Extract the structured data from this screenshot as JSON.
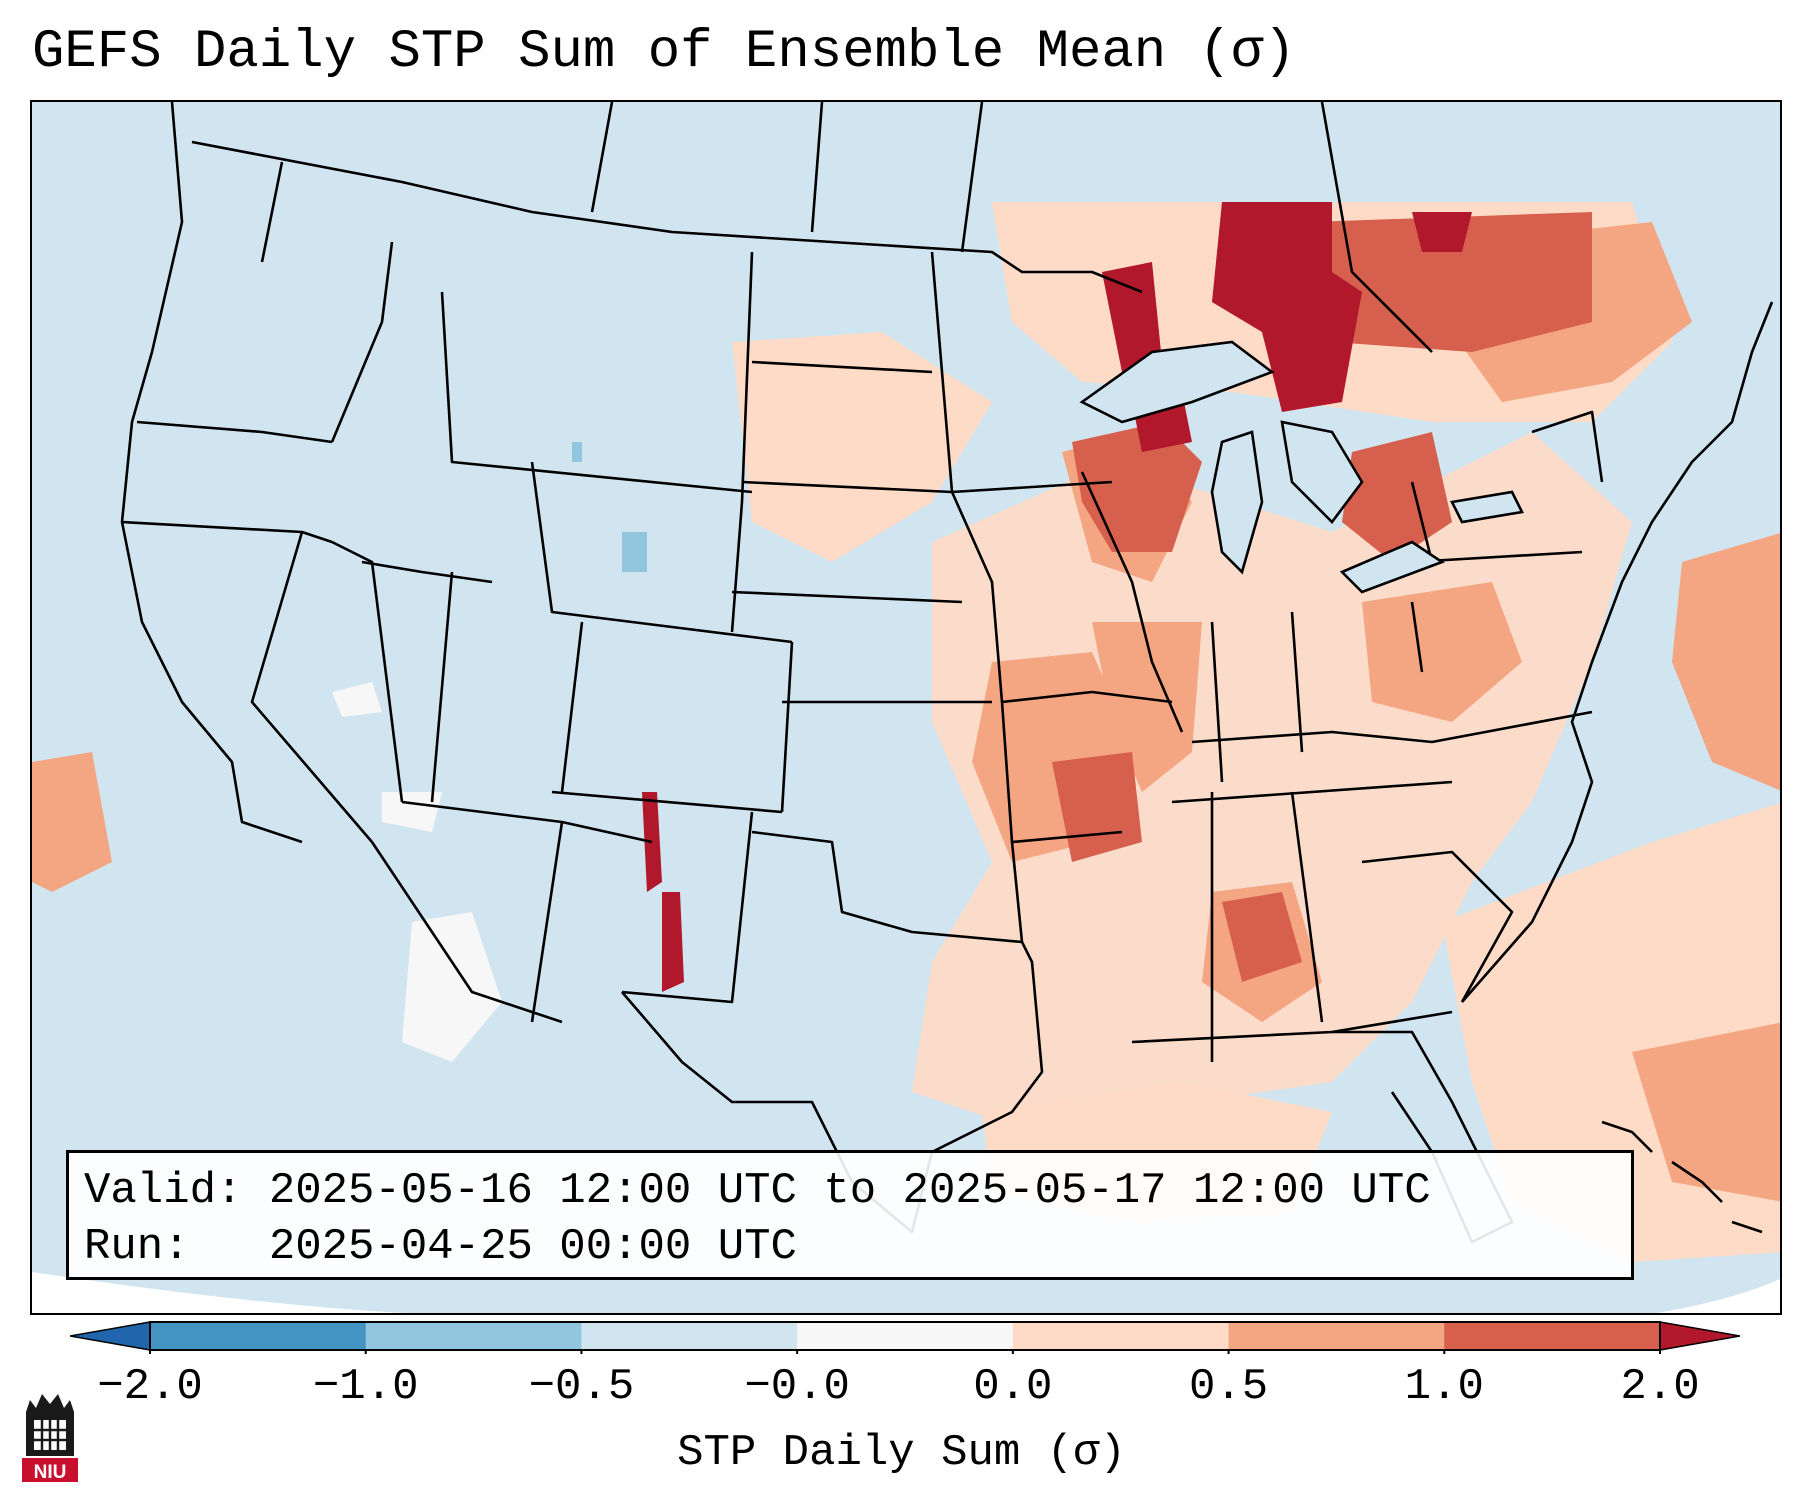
{
  "title": "GEFS Daily STP Sum of Ensemble Mean (σ)",
  "info": {
    "valid_label": "Valid:",
    "valid_value": "2025-05-16 12:00 UTC to 2025-05-17 12:00 UTC",
    "run_label": "Run:",
    "run_value": "2025-04-25 00:00 UTC"
  },
  "colorbar": {
    "label": "STP Daily Sum (σ)",
    "ticks": [
      "−2.0",
      "−1.0",
      "−0.5",
      "−0.0",
      "0.0",
      "0.5",
      "1.0",
      "2.0"
    ],
    "bins": [
      {
        "from": -2.0,
        "to": -1.0,
        "color": "#4393c3"
      },
      {
        "from": -1.0,
        "to": -0.5,
        "color": "#92c5de"
      },
      {
        "from": -0.5,
        "to": -0.0,
        "color": "#d1e5f0"
      },
      {
        "from": -0.0,
        "to": 0.0,
        "color": "#f7f7f7"
      },
      {
        "from": 0.0,
        "to": 0.5,
        "color": "#fddbc7"
      },
      {
        "from": 0.5,
        "to": 1.0,
        "color": "#f4a582"
      },
      {
        "from": 1.0,
        "to": 2.0,
        "color": "#d6604d"
      }
    ],
    "under_color": "#2166ac",
    "over_color": "#b2182b"
  },
  "map": {
    "background_color": "#d1e5f0",
    "region": "CONUS",
    "features": [
      "state borders",
      "coastlines",
      "country borders",
      "Great Lakes"
    ]
  },
  "logo": {
    "text": "NIU",
    "icon": "niu-logo-icon",
    "color": "#c8102e"
  }
}
